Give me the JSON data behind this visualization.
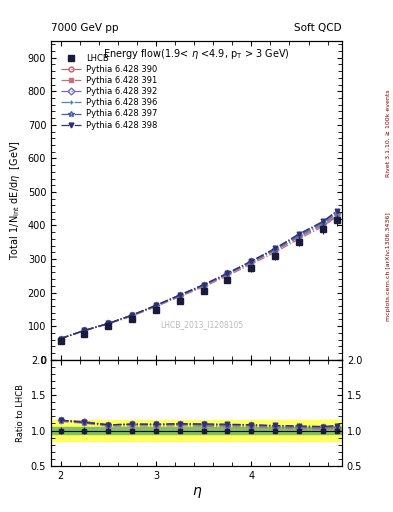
{
  "title_left": "7000 GeV pp",
  "title_right": "Soft QCD",
  "plot_title": "Energy flow(1.9< η <4.9, p_{T} > 3 GeV)",
  "ylabel_main": "Total 1/N$_{int}$ dE/d$\\eta$  [GeV]",
  "ylabel_ratio": "Ratio to LHCB",
  "xlabel": "η",
  "watermark": "LHCB_2013_I1208105",
  "right_label1": "Rivet 3.1.10, ≥ 100k events",
  "right_label2": "mcplots.cern.ch [arXiv:1306.3436]",
  "eta": [
    2.0,
    2.25,
    2.5,
    2.75,
    3.0,
    3.25,
    3.5,
    3.75,
    4.0,
    4.25,
    4.5,
    4.75,
    4.9
  ],
  "lhcb": [
    55,
    78,
    100,
    122,
    149,
    176,
    205,
    237,
    272,
    310,
    352,
    390,
    415
  ],
  "lhcb_err": [
    3,
    4,
    4,
    5,
    6,
    7,
    8,
    9,
    11,
    12,
    14,
    15,
    16
  ],
  "p390": [
    63,
    88,
    108,
    132,
    161,
    191,
    221,
    254,
    289,
    325,
    365,
    401,
    430
  ],
  "p391": [
    62,
    86,
    106,
    130,
    158,
    188,
    217,
    250,
    285,
    320,
    360,
    397,
    427
  ],
  "p392": [
    63,
    87,
    108,
    133,
    162,
    193,
    223,
    257,
    293,
    330,
    371,
    408,
    438
  ],
  "p396": [
    63,
    87,
    108,
    132,
    161,
    191,
    221,
    255,
    291,
    327,
    368,
    405,
    435
  ],
  "p397": [
    63,
    87,
    108,
    133,
    162,
    192,
    222,
    257,
    293,
    330,
    372,
    410,
    442
  ],
  "p398": [
    63,
    87,
    108,
    133,
    162,
    193,
    224,
    258,
    294,
    332,
    375,
    412,
    444
  ],
  "c390": "#c06070",
  "c391": "#c07080",
  "c392": "#7070b0",
  "c396": "#5080b0",
  "c397": "#4060a0",
  "c398": "#303070",
  "ylim_main": [
    0,
    950
  ],
  "ylim_ratio": [
    0.5,
    2.0
  ],
  "yticks_main": [
    0,
    100,
    200,
    300,
    400,
    500,
    600,
    700,
    800,
    900
  ],
  "yticks_ratio": [
    0.5,
    1.0,
    1.5,
    2.0
  ],
  "band_green": 0.05,
  "band_yellow": 0.15
}
